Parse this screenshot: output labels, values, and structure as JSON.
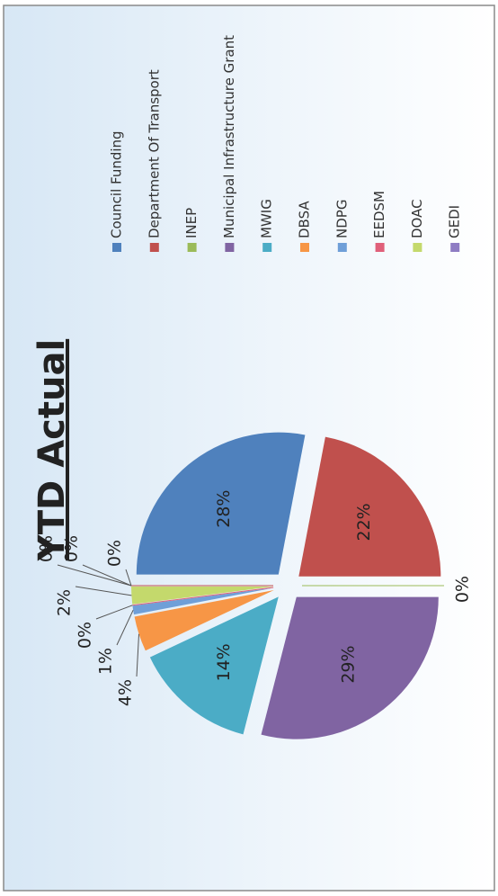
{
  "chart_data": {
    "type": "pie",
    "title": "YTD Actual",
    "categories": [
      "Council Funding",
      "Department Of Transport",
      "INEP",
      "Municipal Infrastructure Grant",
      "MWIG",
      "DBSA",
      "NDPG",
      "EEDSM",
      "DOAC",
      "GEDI",
      null,
      null
    ],
    "values": [
      28,
      22,
      0,
      29,
      14,
      4,
      1,
      0,
      2,
      0,
      0,
      0
    ],
    "value_labels": [
      "28%",
      "22%",
      "0%",
      "29%",
      "14%",
      "4%",
      "1%",
      "0%",
      "2%",
      "0%",
      "0%",
      "0%"
    ],
    "colors": [
      "#4f81bd",
      "#c0504d",
      "#9bbb59",
      "#8064a2",
      "#4bacc6",
      "#f79646",
      "#6f9fd8",
      "#e0607a",
      "#c4d96c",
      "#8e7cc3",
      "#4f81bd",
      "#c0504d"
    ],
    "legend": "right"
  }
}
